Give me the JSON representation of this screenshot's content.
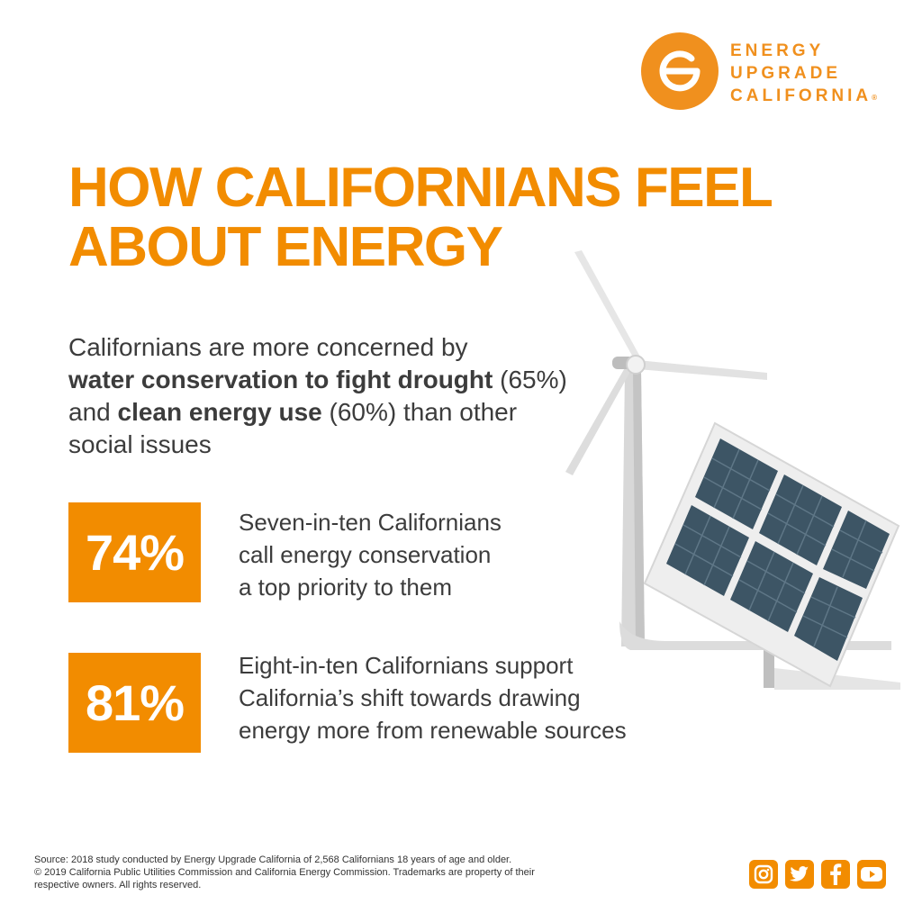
{
  "brand": {
    "line1": "ENERGY",
    "line2": "UPGRADE",
    "line3": "CALIFORNIA",
    "registered": "®",
    "color": "#f28c00"
  },
  "title": {
    "line1": "HOW CALIFORNIANS FEEL",
    "line2": "ABOUT ENERGY"
  },
  "intro": {
    "part1": "Californians are more concerned by",
    "bold1": "water conservation to fight drought",
    "part2": " (65%)",
    "part3": "and ",
    "bold2": "clean energy use",
    "part4": " (60%) than other",
    "part5": "social issues"
  },
  "stats": [
    {
      "value": "74%",
      "lines": [
        "Seven-in-ten Californians",
        "call energy conservation",
        "a top priority to them"
      ]
    },
    {
      "value": "81%",
      "lines": [
        "Eight-in-ten Californians support",
        "California’s shift towards drawing",
        "energy more from renewable sources"
      ]
    }
  ],
  "footer": {
    "line1": "Source: 2018 study conducted by Energy Upgrade California of 2,568 Californians 18 years of age and older.",
    "line2": "© 2019 California Public Utilities Commission and California Energy Commission. Trademarks are property of their",
    "line3": "respective owners. All rights reserved."
  },
  "social": [
    "instagram-icon",
    "twitter-icon",
    "facebook-icon",
    "youtube-icon"
  ]
}
